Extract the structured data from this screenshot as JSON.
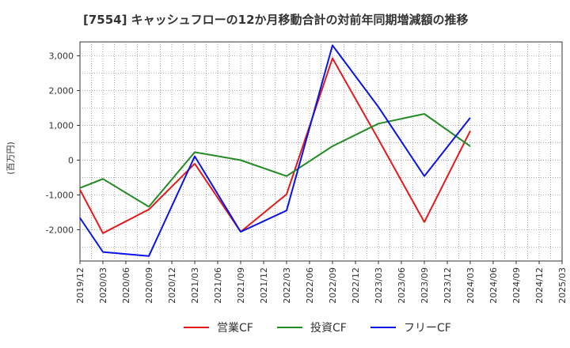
{
  "title": "[7554]  キャッシュフローの12か月移動合計の対前年同期増減額の推移",
  "chart_data": {
    "type": "line",
    "ylabel": "(百万円)",
    "ylim": [
      -2900,
      3400
    ],
    "yticks": [
      3000,
      2000,
      1000,
      0,
      -1000,
      -2000
    ],
    "ytick_labels": [
      "3,000",
      "2,000",
      "1,000",
      "0",
      "-1,000",
      "-2,000"
    ],
    "x": [
      "2019/12",
      "2020/03",
      "2020/06",
      "2020/09",
      "2020/12",
      "2021/03",
      "2021/06",
      "2021/09",
      "2021/12",
      "2022/03",
      "2022/06",
      "2022/09",
      "2022/12",
      "2023/03",
      "2023/06",
      "2023/09",
      "2023/12",
      "2024/03",
      "2024/06",
      "2024/09",
      "2024/12",
      "2025/03"
    ],
    "grid": true,
    "legend_position": "bottom",
    "series": [
      {
        "name": "営業CF",
        "color": "#e31a1c",
        "values": [
          -850,
          -2100,
          null,
          -1420,
          null,
          -100,
          null,
          -2060,
          null,
          -980,
          null,
          2930,
          null,
          600,
          null,
          -1780,
          null,
          840,
          null,
          null,
          null,
          null
        ]
      },
      {
        "name": "投資CF",
        "color": "#238b23",
        "values": [
          -800,
          -540,
          null,
          -1340,
          null,
          230,
          null,
          0,
          null,
          -460,
          null,
          400,
          null,
          1050,
          null,
          1330,
          null,
          400,
          null,
          null,
          null,
          null
        ]
      },
      {
        "name": "フリーCF",
        "color": "#0a14e6",
        "values": [
          -1660,
          -2640,
          null,
          -2760,
          null,
          110,
          null,
          -2060,
          null,
          -1450,
          null,
          3300,
          null,
          1530,
          null,
          -460,
          null,
          1220,
          null,
          null,
          null,
          null
        ]
      }
    ]
  }
}
